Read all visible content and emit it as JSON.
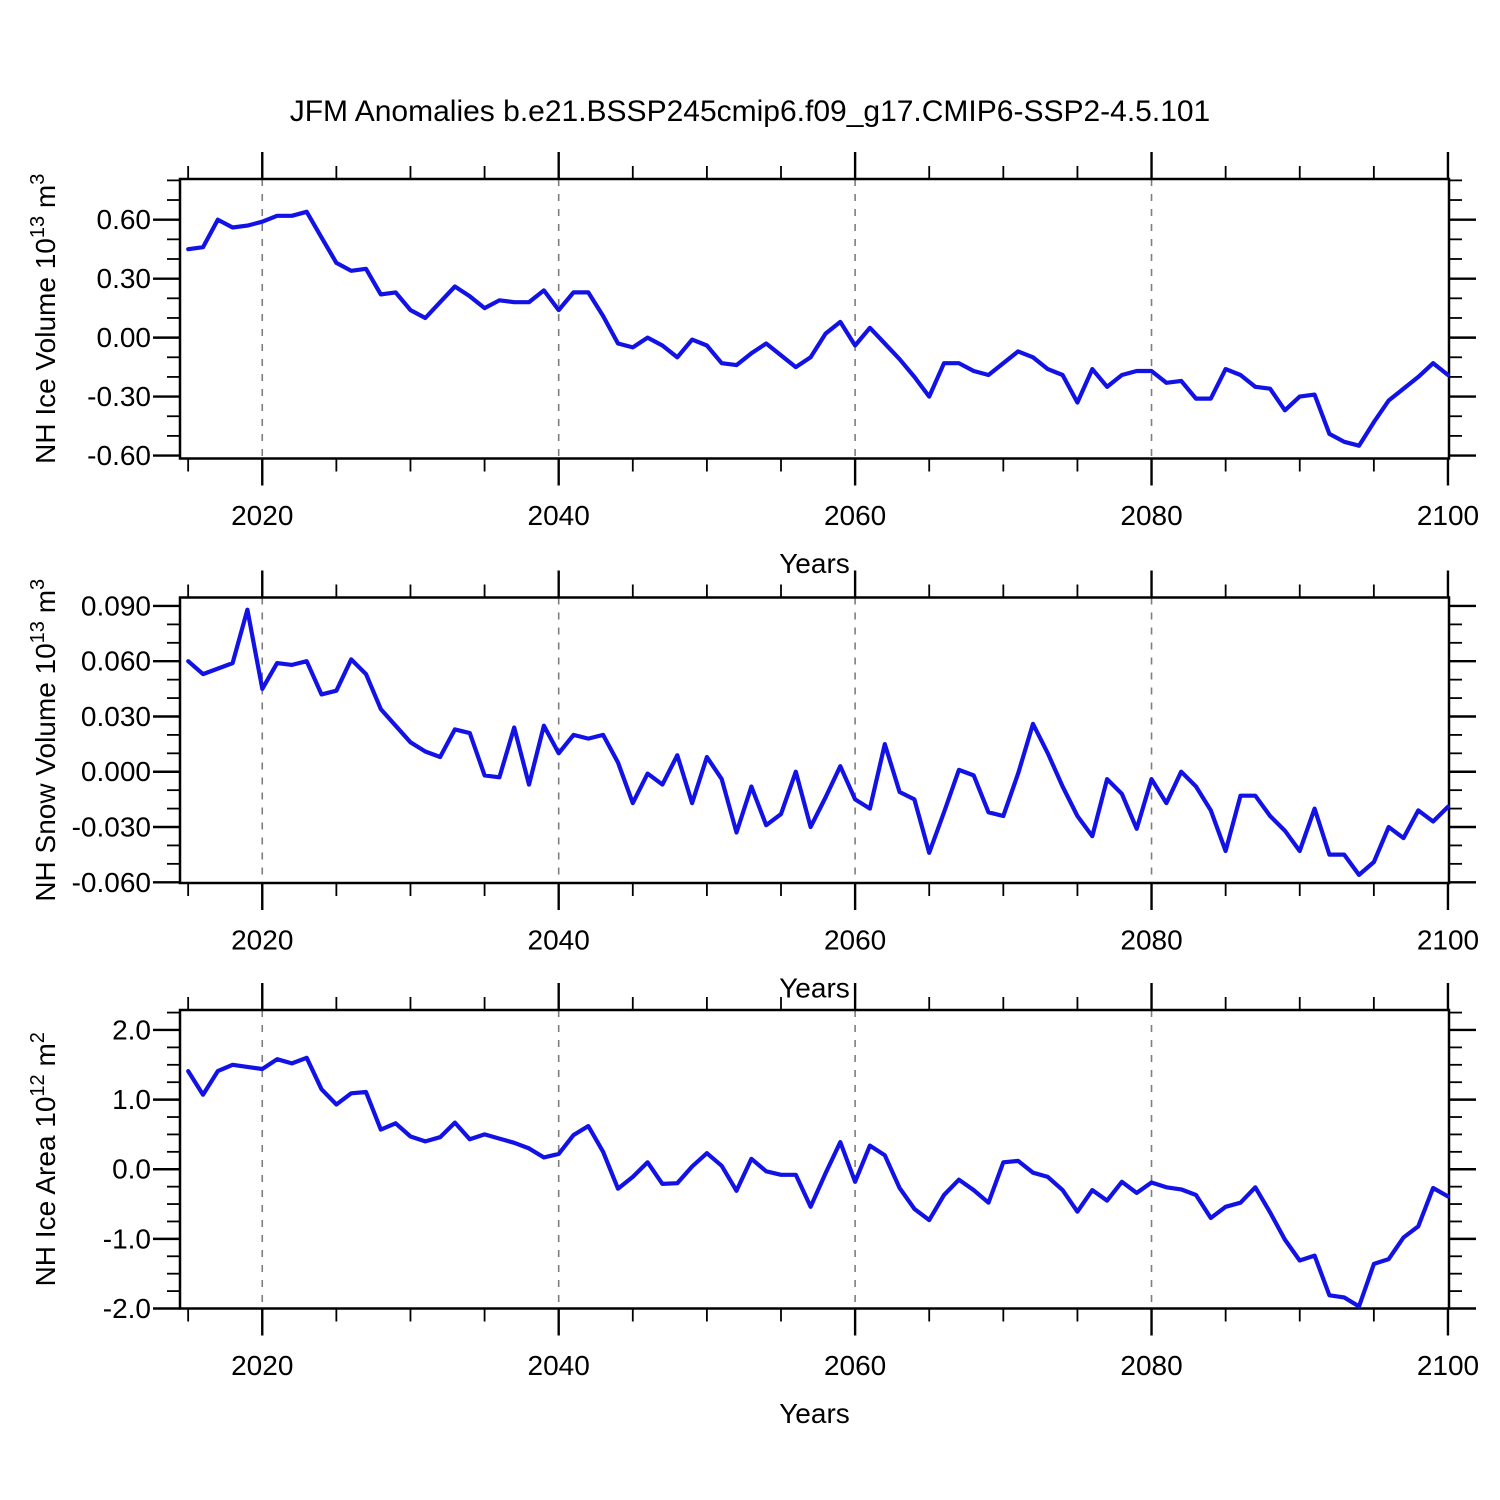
{
  "title": "JFM Anomalies b.e21.BSSP245cmip6.f09_g17.CMIP6-SSP2-4.5.101",
  "line_color": "#1212e6",
  "grid_color": "#7e7e7e",
  "years": [
    2015,
    2016,
    2017,
    2018,
    2019,
    2020,
    2021,
    2022,
    2023,
    2024,
    2025,
    2026,
    2027,
    2028,
    2029,
    2030,
    2031,
    2032,
    2033,
    2034,
    2035,
    2036,
    2037,
    2038,
    2039,
    2040,
    2041,
    2042,
    2043,
    2044,
    2045,
    2046,
    2047,
    2048,
    2049,
    2050,
    2051,
    2052,
    2053,
    2054,
    2055,
    2056,
    2057,
    2058,
    2059,
    2060,
    2061,
    2062,
    2063,
    2064,
    2065,
    2066,
    2067,
    2068,
    2069,
    2070,
    2071,
    2072,
    2073,
    2074,
    2075,
    2076,
    2077,
    2078,
    2079,
    2080,
    2081,
    2082,
    2083,
    2084,
    2085,
    2086,
    2087,
    2088,
    2089,
    2090,
    2091,
    2092,
    2093,
    2094,
    2095,
    2096,
    2097,
    2098,
    2099,
    2100
  ],
  "chart_data": [
    {
      "type": "line",
      "name": "nh-ice-volume",
      "xlabel": "Years",
      "ylabel_parts": [
        {
          "text": "NH Ice Volume 10"
        },
        {
          "text": "13",
          "sup": true
        },
        {
          "text": " m"
        },
        {
          "text": "3",
          "sup": true
        }
      ],
      "xlim": [
        2014.45,
        2100.07
      ],
      "ylim": [
        -0.615,
        0.807
      ],
      "x_major_ticks": [
        2020,
        2040,
        2060,
        2080,
        2100
      ],
      "x_tick_labels": [
        "2020",
        "2040",
        "2060",
        "2080",
        "2100"
      ],
      "x_minor_step": 5,
      "grid_years": [
        2020,
        2040,
        2060,
        2080
      ],
      "y_major_ticks": [
        -0.6,
        -0.3,
        0.0,
        0.3,
        0.6
      ],
      "y_tick_labels": [
        "-0.60",
        "-0.30",
        "0.00",
        "0.30",
        "0.60"
      ],
      "y_minor_step": 0.1,
      "values": [
        0.45,
        0.46,
        0.6,
        0.56,
        0.57,
        0.59,
        0.62,
        0.62,
        0.64,
        0.51,
        0.38,
        0.34,
        0.35,
        0.22,
        0.23,
        0.14,
        0.1,
        0.18,
        0.26,
        0.21,
        0.15,
        0.19,
        0.18,
        0.18,
        0.24,
        0.14,
        0.23,
        0.23,
        0.11,
        -0.03,
        -0.05,
        0.0,
        -0.04,
        -0.1,
        -0.01,
        -0.04,
        -0.13,
        -0.14,
        -0.08,
        -0.03,
        -0.09,
        -0.15,
        -0.1,
        0.02,
        0.08,
        -0.04,
        0.05,
        -0.03,
        -0.11,
        -0.2,
        -0.3,
        -0.13,
        -0.13,
        -0.17,
        -0.19,
        -0.13,
        -0.07,
        -0.1,
        -0.16,
        -0.19,
        -0.33,
        -0.16,
        -0.25,
        -0.19,
        -0.17,
        -0.17,
        -0.23,
        -0.22,
        -0.31,
        -0.31,
        -0.16,
        -0.19,
        -0.25,
        -0.26,
        -0.37,
        -0.3,
        -0.29,
        -0.49,
        -0.53,
        -0.55,
        -0.43,
        -0.32,
        -0.26,
        -0.2,
        -0.13,
        -0.19
      ]
    },
    {
      "type": "line",
      "name": "nh-snow-volume",
      "xlabel": "Years",
      "ylabel_parts": [
        {
          "text": "NH Snow Volume 10"
        },
        {
          "text": "13",
          "sup": true
        },
        {
          "text": " m"
        },
        {
          "text": "3",
          "sup": true
        }
      ],
      "xlim": [
        2014.45,
        2100.07
      ],
      "ylim": [
        -0.0604,
        0.0946
      ],
      "x_major_ticks": [
        2020,
        2040,
        2060,
        2080,
        2100
      ],
      "x_tick_labels": [
        "2020",
        "2040",
        "2060",
        "2080",
        "2100"
      ],
      "x_minor_step": 5,
      "grid_years": [
        2020,
        2040,
        2060,
        2080
      ],
      "y_major_ticks": [
        -0.06,
        -0.03,
        0.0,
        0.03,
        0.06,
        0.09
      ],
      "y_tick_labels": [
        "-0.060",
        "-0.030",
        "0.000",
        "0.030",
        "0.060",
        "0.090"
      ],
      "y_minor_step": 0.01,
      "values": [
        0.06,
        0.053,
        0.056,
        0.059,
        0.088,
        0.045,
        0.059,
        0.058,
        0.06,
        0.042,
        0.044,
        0.061,
        0.053,
        0.034,
        0.025,
        0.016,
        0.011,
        0.008,
        0.023,
        0.021,
        -0.002,
        -0.003,
        0.024,
        -0.007,
        0.025,
        0.01,
        0.02,
        0.018,
        0.02,
        0.005,
        -0.017,
        -0.001,
        -0.007,
        0.009,
        -0.017,
        0.008,
        -0.004,
        -0.033,
        -0.008,
        -0.029,
        -0.023,
        0.0,
        -0.03,
        -0.014,
        0.003,
        -0.015,
        -0.02,
        0.015,
        -0.011,
        -0.015,
        -0.044,
        -0.022,
        0.001,
        -0.002,
        -0.022,
        -0.024,
        -0.001,
        0.026,
        0.01,
        -0.008,
        -0.024,
        -0.035,
        -0.004,
        -0.012,
        -0.031,
        -0.004,
        -0.017,
        0.0,
        -0.008,
        -0.021,
        -0.043,
        -0.013,
        -0.013,
        -0.024,
        -0.032,
        -0.043,
        -0.02,
        -0.045,
        -0.045,
        -0.056,
        -0.049,
        -0.03,
        -0.036,
        -0.021,
        -0.027,
        -0.019
      ]
    },
    {
      "type": "line",
      "name": "nh-ice-area",
      "xlabel": "Years",
      "ylabel_parts": [
        {
          "text": "NH Ice Area 10"
        },
        {
          "text": "12",
          "sup": true
        },
        {
          "text": " m"
        },
        {
          "text": "2",
          "sup": true
        }
      ],
      "xlim": [
        2014.45,
        2100.07
      ],
      "ylim": [
        -2.0,
        2.287
      ],
      "x_major_ticks": [
        2020,
        2040,
        2060,
        2080,
        2100
      ],
      "x_tick_labels": [
        "2020",
        "2040",
        "2060",
        "2080",
        "2100"
      ],
      "x_minor_step": 5,
      "grid_years": [
        2020,
        2040,
        2060,
        2080
      ],
      "y_major_ticks": [
        -2.0,
        -1.0,
        0.0,
        1.0,
        2.0
      ],
      "y_tick_labels": [
        "-2.0",
        "-1.0",
        "0.0",
        "1.0",
        "2.0"
      ],
      "y_minor_step": 0.25,
      "values": [
        1.41,
        1.07,
        1.41,
        1.5,
        1.47,
        1.44,
        1.58,
        1.52,
        1.6,
        1.15,
        0.93,
        1.09,
        1.11,
        0.57,
        0.66,
        0.47,
        0.4,
        0.46,
        0.67,
        0.43,
        0.5,
        0.44,
        0.38,
        0.3,
        0.17,
        0.22,
        0.49,
        0.62,
        0.25,
        -0.28,
        -0.11,
        0.1,
        -0.21,
        -0.2,
        0.04,
        0.23,
        0.05,
        -0.31,
        0.15,
        -0.03,
        -0.08,
        -0.08,
        -0.54,
        -0.06,
        0.39,
        -0.18,
        0.34,
        0.2,
        -0.27,
        -0.57,
        -0.73,
        -0.37,
        -0.15,
        -0.3,
        -0.48,
        0.1,
        0.12,
        -0.05,
        -0.11,
        -0.3,
        -0.61,
        -0.3,
        -0.45,
        -0.18,
        -0.34,
        -0.19,
        -0.26,
        -0.29,
        -0.37,
        -0.7,
        -0.54,
        -0.48,
        -0.26,
        -0.62,
        -1.01,
        -1.31,
        -1.24,
        -1.81,
        -1.84,
        -1.97,
        -1.36,
        -1.29,
        -0.98,
        -0.82,
        -0.27,
        -0.39
      ]
    }
  ]
}
